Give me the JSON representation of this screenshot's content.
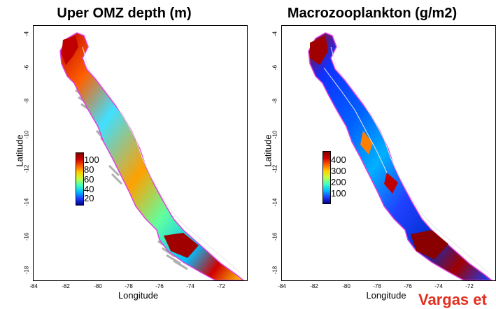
{
  "left_panel": {
    "title": "Uper OMZ depth (m)",
    "ylabel": "Latitude",
    "xlabel": "Longitude",
    "legend": [
      "100",
      "80",
      "60",
      "40",
      "20"
    ]
  },
  "right_panel": {
    "title": "Macrozooplankton (g/m2)",
    "ylabel": "Latitude",
    "xlabel": "Longitude",
    "legend": [
      "400",
      "300",
      "200",
      "100"
    ]
  },
  "lat_ticks": [
    "-4",
    "-6",
    "-8",
    "-10",
    "-12",
    "-14",
    "-16",
    "-18"
  ],
  "lon_ticks": [
    "-84",
    "-82",
    "-80",
    "-78",
    "-76",
    "-74",
    "-72"
  ],
  "credit": "Vargas et",
  "colors": {
    "coastline": "#e040e0",
    "isolines": "#e8e8e8",
    "overlay_arrows": "#b0b0b0"
  }
}
